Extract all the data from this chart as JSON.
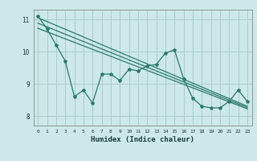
{
  "title": "",
  "xlabel": "Humidex (Indice chaleur)",
  "ylabel": "",
  "xlim": [
    -0.5,
    23.5
  ],
  "ylim": [
    7.7,
    11.3
  ],
  "yticks": [
    8,
    9,
    10,
    11
  ],
  "xticks": [
    0,
    1,
    2,
    3,
    4,
    5,
    6,
    7,
    8,
    9,
    10,
    11,
    12,
    13,
    14,
    15,
    16,
    17,
    18,
    19,
    20,
    21,
    22,
    23
  ],
  "bg_color": "#cce8e8",
  "grid_color": "#aacccc",
  "line_color": "#2a7a6a",
  "series1": [
    11.1,
    10.7,
    10.2,
    9.7,
    8.6,
    8.8,
    8.4,
    9.3,
    9.3,
    9.1,
    9.45,
    9.4,
    9.55,
    9.6,
    9.95,
    10.05,
    9.15,
    8.55,
    8.3,
    8.25,
    8.25,
    8.45,
    8.8,
    8.45
  ],
  "trend1_x": [
    0,
    23
  ],
  "trend1_y": [
    11.05,
    8.3
  ],
  "trend2_x": [
    0,
    23
  ],
  "trend2_y": [
    10.72,
    8.22
  ],
  "trend3_x": [
    0,
    23
  ],
  "trend3_y": [
    10.88,
    8.26
  ],
  "marker_size": 3,
  "line_width": 0.9
}
